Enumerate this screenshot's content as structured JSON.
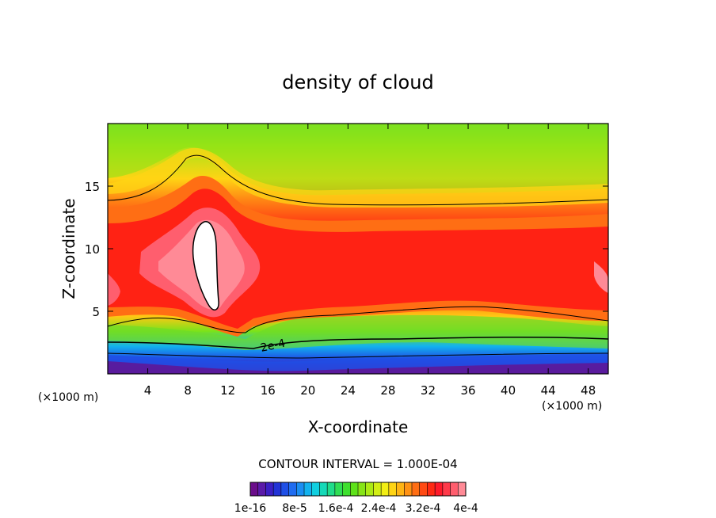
{
  "chart_data": {
    "type": "heatmap",
    "title": "density of cloud",
    "xlabel": "X-coordinate",
    "ylabel": "Z-coordinate",
    "x_unit_left": "(×1000 m)",
    "x_unit_right": "(×1000 m)",
    "xlim": [
      0,
      50
    ],
    "ylim": [
      0,
      20
    ],
    "x_ticks": [
      4,
      8,
      12,
      16,
      20,
      24,
      28,
      32,
      36,
      40,
      44,
      48
    ],
    "y_ticks": [
      5,
      10,
      15
    ],
    "contour_interval_text": "CONTOUR INTERVAL = 1.000E-04",
    "contour_label": "2e-4",
    "colorbar": {
      "colors": [
        "#6a0d8a",
        "#5a1aa8",
        "#3b1fc4",
        "#2233d6",
        "#1f4fe6",
        "#1f6cf0",
        "#1a8ef2",
        "#12b2ee",
        "#10cfe0",
        "#15d9b8",
        "#20dc8a",
        "#2fde55",
        "#3ee02e",
        "#5ee21a",
        "#86e416",
        "#acea14",
        "#d2ee14",
        "#f2ee14",
        "#ffd414",
        "#ffb414",
        "#ff9214",
        "#ff6e14",
        "#ff4a14",
        "#ff2a14",
        "#ff1a2a",
        "#ff3a4a",
        "#ff5e6e",
        "#ff8a96"
      ],
      "labels": [
        "1e-16",
        "8e-5",
        "1.6e-4",
        "2.4e-4",
        "3.2e-4",
        "4e-4"
      ]
    }
  }
}
